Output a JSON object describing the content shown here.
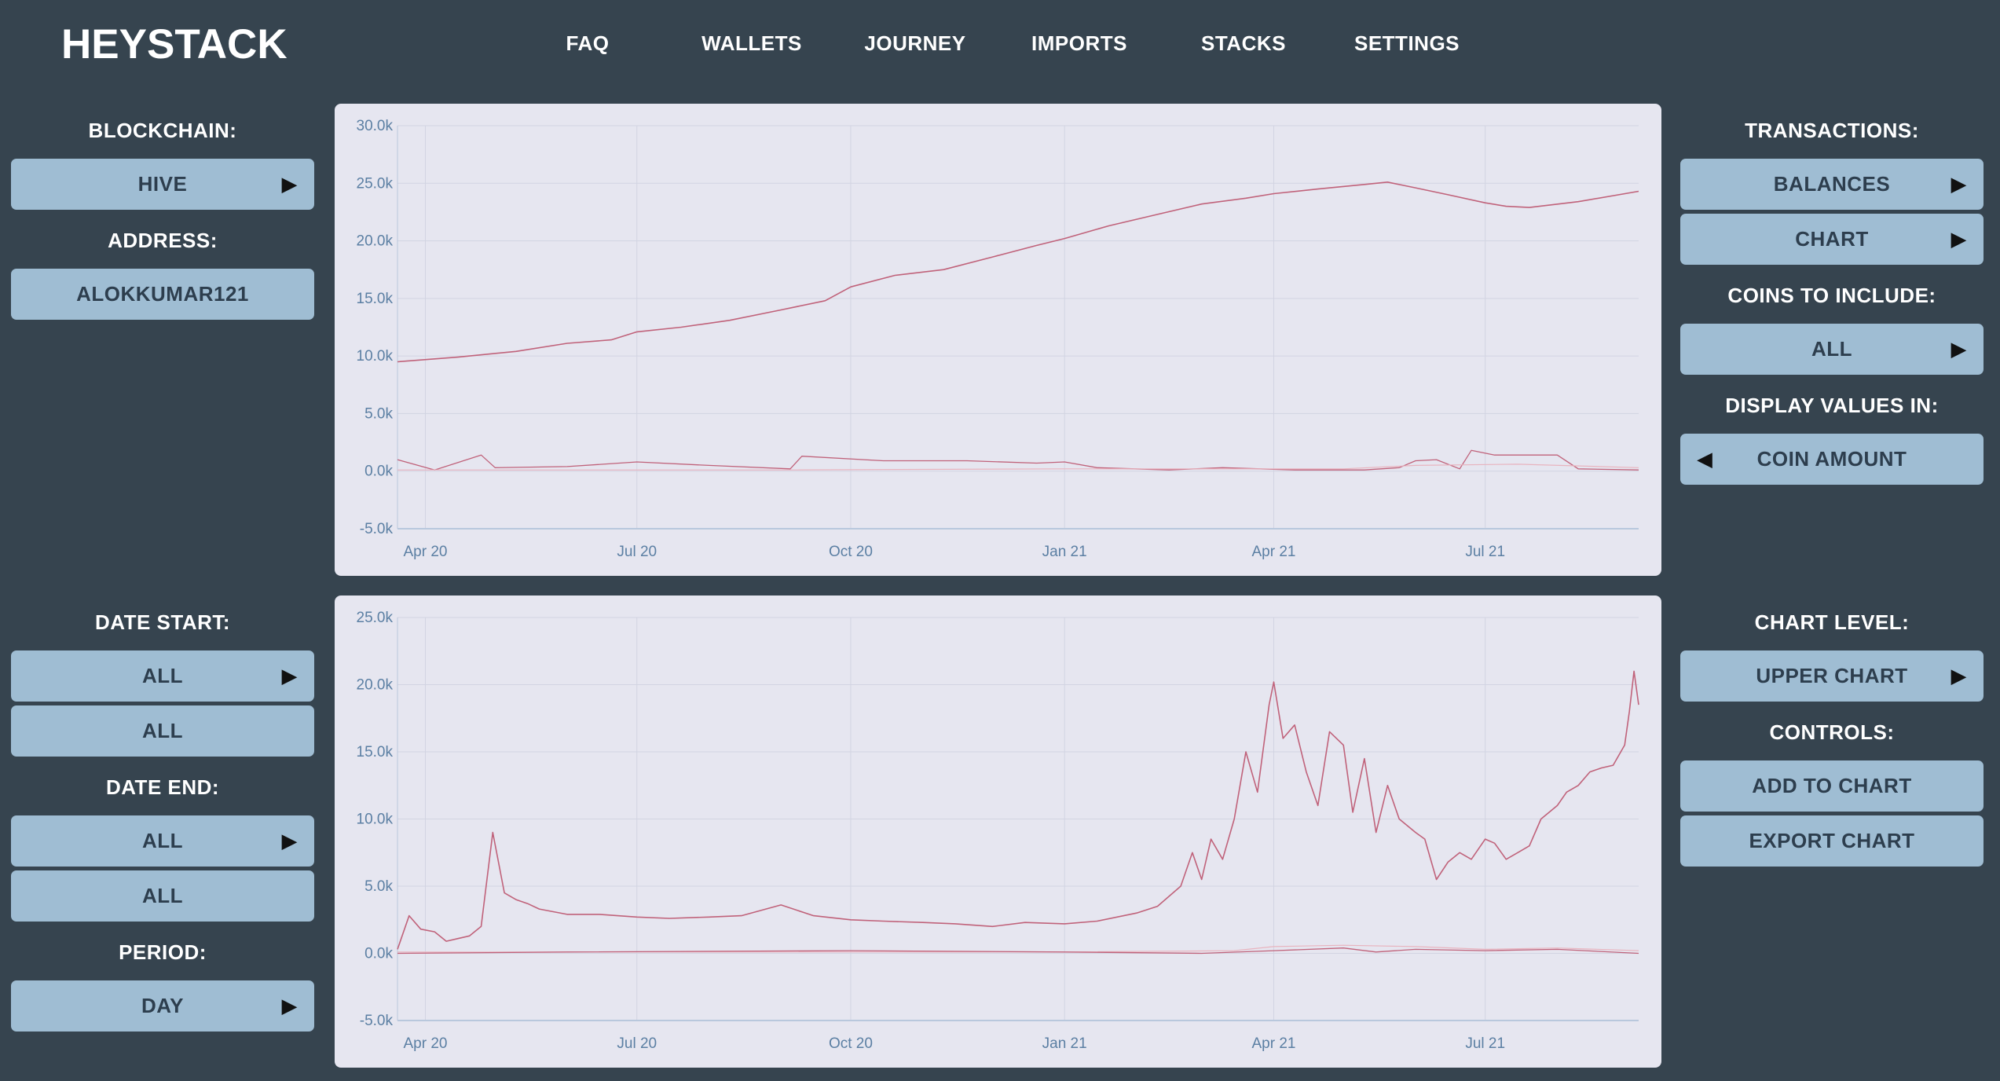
{
  "app": {
    "logo": "HEYSTACK"
  },
  "nav": [
    "FAQ",
    "WALLETS",
    "JOURNEY",
    "IMPORTS",
    "STACKS",
    "SETTINGS"
  ],
  "left": {
    "blockchain_label": "BLOCKCHAIN:",
    "blockchain_value": "HIVE",
    "address_label": "ADDRESS:",
    "address_value": "ALOKKUMAR121",
    "date_start_label": "DATE START:",
    "date_start_value": "ALL",
    "date_start_value2": "ALL",
    "date_end_label": "DATE END:",
    "date_end_value": "ALL",
    "date_end_value2": "ALL",
    "period_label": "PERIOD:",
    "period_value": "DAY"
  },
  "right": {
    "transactions_label": "TRANSACTIONS:",
    "balances_button": "BALANCES",
    "chart_button": "CHART",
    "coins_label": "COINS TO INCLUDE:",
    "coins_value": "ALL",
    "display_label": "DISPLAY VALUES IN:",
    "display_value": "COIN AMOUNT",
    "chart_level_label": "CHART LEVEL:",
    "chart_level_value": "UPPER CHART",
    "controls_label": "CONTROLS:",
    "add_button": "ADD TO CHART",
    "export_button": "EXPORT CHART"
  },
  "colors": {
    "background": "#36444f",
    "button": "#9fbdd3",
    "chart_bg": "#e6e6f0",
    "series_main": "#c0627a",
    "series_light": "#e8b4bf",
    "tick": "#5b7fa3"
  },
  "chart_data": [
    {
      "type": "line",
      "xlabel": "",
      "ylabel": "",
      "ylim": [
        -5000,
        30000
      ],
      "y_ticks": [
        -5000,
        0,
        5000,
        10000,
        15000,
        20000,
        25000,
        30000
      ],
      "y_tick_labels": [
        "-5.0k",
        "0.0k",
        "5.0k",
        "10.0k",
        "15.0k",
        "20.0k",
        "25.0k",
        "30.0k"
      ],
      "x_tick_labels": [
        "Apr 20",
        "Jul 20",
        "Oct 20",
        "Jan 21",
        "Apr 21",
        "Jul 21"
      ],
      "x_tick_dates": [
        "2020-04-01",
        "2020-07-01",
        "2020-10-01",
        "2021-01-01",
        "2021-04-01",
        "2021-07-01"
      ],
      "xlim": [
        "2020-03-20",
        "2021-09-05"
      ],
      "grid": true,
      "series": [
        {
          "color": "#c0627a",
          "width": 1.6,
          "x": [
            "2020-03-20",
            "2020-04-15",
            "2020-05-10",
            "2020-06-01",
            "2020-06-20",
            "2020-07-01",
            "2020-07-20",
            "2020-08-10",
            "2020-09-01",
            "2020-09-20",
            "2020-10-01",
            "2020-10-20",
            "2020-11-10",
            "2020-12-01",
            "2020-12-20",
            "2021-01-01",
            "2021-01-20",
            "2021-02-10",
            "2021-03-01",
            "2021-03-20",
            "2021-04-01",
            "2021-04-20",
            "2021-05-10",
            "2021-05-20",
            "2021-06-01",
            "2021-06-15",
            "2021-07-01",
            "2021-07-10",
            "2021-07-20",
            "2021-08-10",
            "2021-09-05"
          ],
          "y": [
            9500,
            9900,
            10400,
            11100,
            11400,
            12100,
            12500,
            13100,
            14000,
            14800,
            16000,
            17000,
            17500,
            18600,
            19600,
            20200,
            21300,
            22300,
            23200,
            23700,
            24100,
            24500,
            24900,
            25100,
            24600,
            24000,
            23300,
            23000,
            22900,
            23400,
            24300
          ]
        },
        {
          "color": "#c0627a",
          "width": 1.3,
          "x": [
            "2020-03-20",
            "2020-04-05",
            "2020-04-25",
            "2020-05-01",
            "2020-06-01",
            "2020-07-01",
            "2020-08-01",
            "2020-09-05",
            "2020-09-10",
            "2020-10-15",
            "2020-11-20",
            "2020-12-20",
            "2021-01-01",
            "2021-01-15",
            "2021-02-15",
            "2021-03-10",
            "2021-04-10",
            "2021-05-10",
            "2021-05-25",
            "2021-06-01",
            "2021-06-10",
            "2021-06-20",
            "2021-06-25",
            "2021-07-05",
            "2021-07-15",
            "2021-08-01",
            "2021-08-10",
            "2021-09-05"
          ],
          "y": [
            1000,
            100,
            1400,
            300,
            400,
            800,
            500,
            200,
            1300,
            900,
            900,
            700,
            800,
            300,
            100,
            300,
            100,
            100,
            300,
            900,
            1000,
            200,
            1800,
            1400,
            1400,
            1400,
            200,
            100
          ]
        },
        {
          "color": "#e8b4bf",
          "width": 1.2,
          "x": [
            "2020-03-20",
            "2020-09-01",
            "2021-01-01",
            "2021-05-01",
            "2021-06-01",
            "2021-07-15",
            "2021-09-05"
          ],
          "y": [
            100,
            100,
            200,
            200,
            500,
            600,
            300
          ]
        }
      ]
    },
    {
      "type": "line",
      "xlabel": "",
      "ylabel": "",
      "ylim": [
        -5000,
        25000
      ],
      "y_ticks": [
        -5000,
        0,
        5000,
        10000,
        15000,
        20000,
        25000
      ],
      "y_tick_labels": [
        "-5.0k",
        "0.0k",
        "5.0k",
        "10.0k",
        "15.0k",
        "20.0k",
        "25.0k"
      ],
      "x_tick_labels": [
        "Apr 20",
        "Jul 20",
        "Oct 20",
        "Jan 21",
        "Apr 21",
        "Jul 21"
      ],
      "x_tick_dates": [
        "2020-04-01",
        "2020-07-01",
        "2020-10-01",
        "2021-01-01",
        "2021-04-01",
        "2021-07-01"
      ],
      "xlim": [
        "2020-03-20",
        "2021-09-05"
      ],
      "grid": true,
      "series": [
        {
          "color": "#c0627a",
          "width": 1.6,
          "x": [
            "2020-03-20",
            "2020-03-25",
            "2020-03-30",
            "2020-04-05",
            "2020-04-10",
            "2020-04-15",
            "2020-04-20",
            "2020-04-25",
            "2020-04-30",
            "2020-05-05",
            "2020-05-10",
            "2020-05-15",
            "2020-05-20",
            "2020-06-01",
            "2020-06-15",
            "2020-07-01",
            "2020-07-15",
            "2020-08-01",
            "2020-08-15",
            "2020-09-01",
            "2020-09-15",
            "2020-10-01",
            "2020-10-15",
            "2020-11-01",
            "2020-11-15",
            "2020-12-01",
            "2020-12-15",
            "2021-01-01",
            "2021-01-15",
            "2021-02-01",
            "2021-02-10",
            "2021-02-20",
            "2021-02-25",
            "2021-03-01",
            "2021-03-05",
            "2021-03-10",
            "2021-03-15",
            "2021-03-20",
            "2021-03-25",
            "2021-03-30",
            "2021-04-01",
            "2021-04-05",
            "2021-04-10",
            "2021-04-15",
            "2021-04-20",
            "2021-04-25",
            "2021-05-01",
            "2021-05-05",
            "2021-05-10",
            "2021-05-15",
            "2021-05-20",
            "2021-05-25",
            "2021-06-01",
            "2021-06-05",
            "2021-06-10",
            "2021-06-15",
            "2021-06-20",
            "2021-06-25",
            "2021-07-01",
            "2021-07-05",
            "2021-07-10",
            "2021-07-15",
            "2021-07-20",
            "2021-07-25",
            "2021-08-01",
            "2021-08-05",
            "2021-08-10",
            "2021-08-15",
            "2021-08-20",
            "2021-08-25",
            "2021-08-30",
            "2021-09-01",
            "2021-09-03",
            "2021-09-05"
          ],
          "y": [
            300,
            2800,
            1800,
            1600,
            900,
            1100,
            1300,
            2000,
            9000,
            4500,
            4000,
            3700,
            3300,
            2900,
            2900,
            2700,
            2600,
            2700,
            2800,
            3600,
            2800,
            2500,
            2400,
            2300,
            2200,
            2000,
            2300,
            2200,
            2400,
            3000,
            3500,
            5000,
            7500,
            5500,
            8500,
            7000,
            10000,
            15000,
            12000,
            18500,
            20200,
            16000,
            17000,
            13500,
            11000,
            16500,
            15500,
            10500,
            14500,
            9000,
            12500,
            10000,
            9000,
            8500,
            5500,
            6800,
            7500,
            7000,
            8500,
            8200,
            7000,
            7500,
            8000,
            10000,
            11000,
            12000,
            12500,
            13500,
            13800,
            14000,
            15500,
            18000,
            21000,
            18500
          ]
        },
        {
          "color": "#e8b4bf",
          "width": 1.2,
          "x": [
            "2020-03-20",
            "2020-09-01",
            "2021-01-01",
            "2021-03-15",
            "2021-04-01",
            "2021-05-01",
            "2021-06-01",
            "2021-07-01",
            "2021-08-01",
            "2021-09-05"
          ],
          "y": [
            100,
            100,
            100,
            200,
            500,
            600,
            500,
            300,
            400,
            200
          ]
        },
        {
          "color": "#c0627a",
          "width": 1.3,
          "x": [
            "2020-03-20",
            "2020-06-01",
            "2020-10-01",
            "2021-01-01",
            "2021-03-01",
            "2021-04-01",
            "2021-05-01",
            "2021-05-15",
            "2021-06-01",
            "2021-07-01",
            "2021-08-01",
            "2021-09-05"
          ],
          "y": [
            0,
            100,
            200,
            100,
            0,
            200,
            400,
            100,
            300,
            200,
            300,
            0
          ]
        }
      ]
    }
  ]
}
